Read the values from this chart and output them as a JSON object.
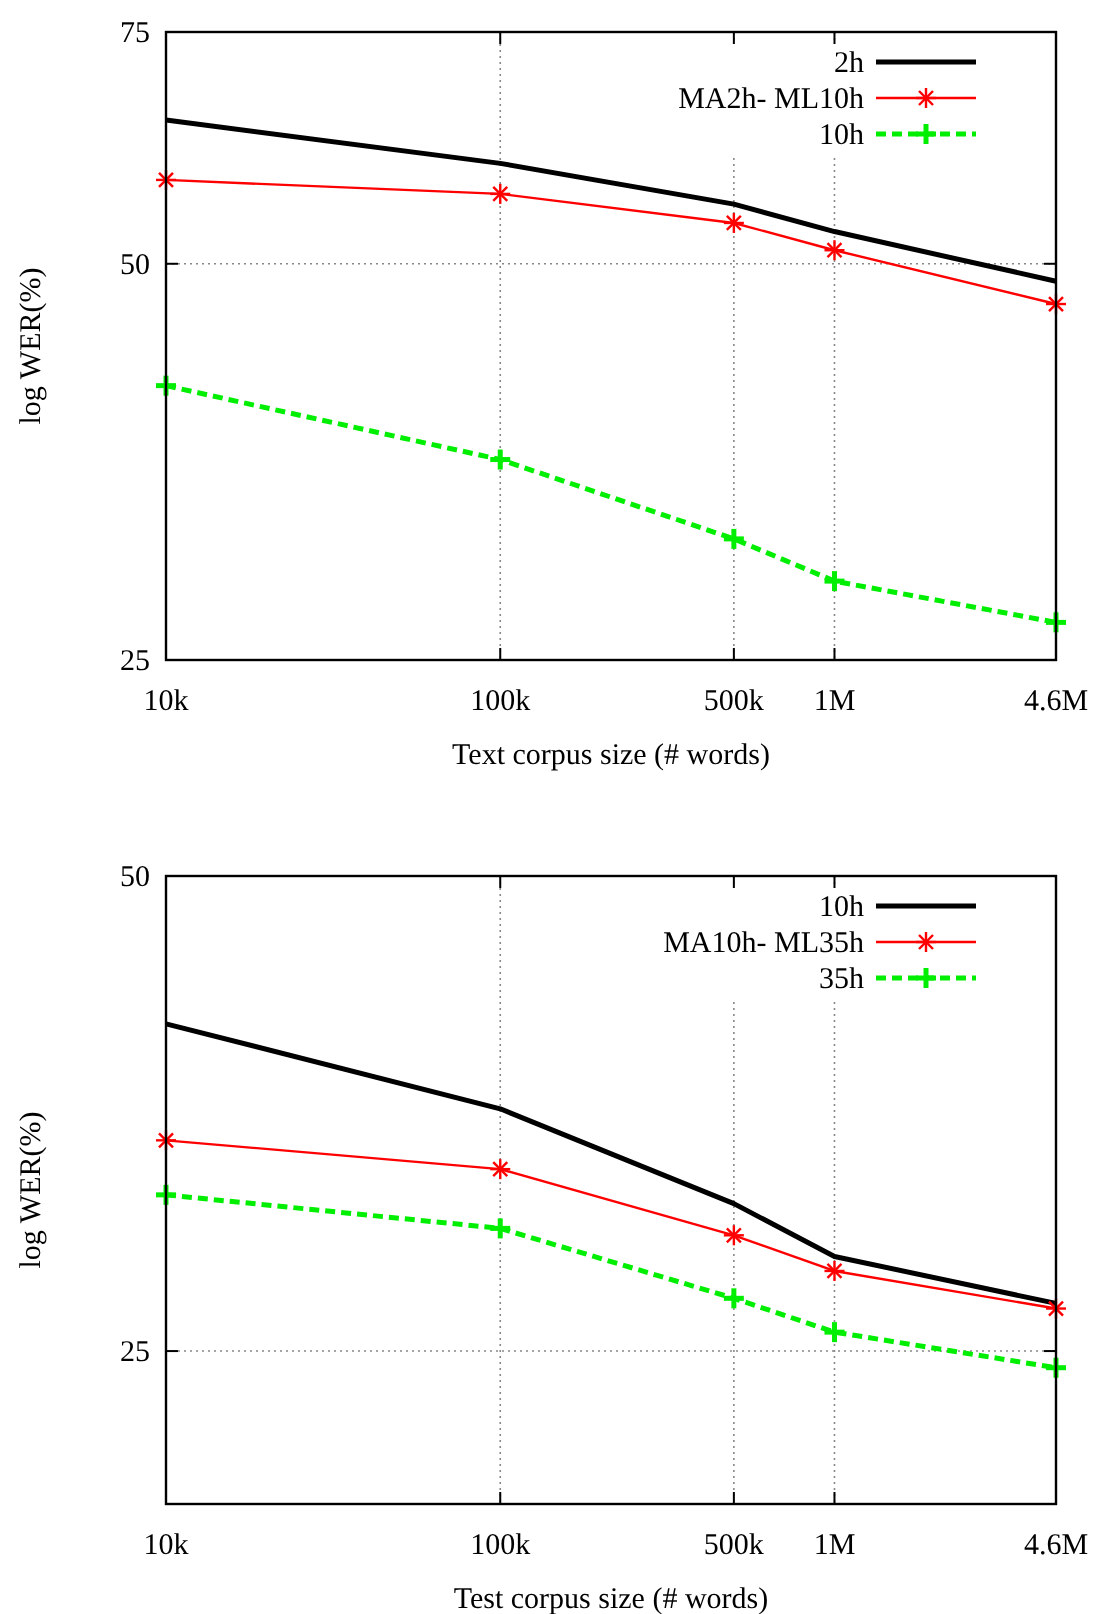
{
  "chart_data": [
    {
      "type": "line",
      "xlabel": "Text corpus size (# words)",
      "ylabel": "log WER(%)",
      "log": "xy",
      "grid": true,
      "legend": "top right",
      "x": [
        10000,
        100000,
        500000,
        1000000,
        4600000
      ],
      "xlim": [
        10000,
        4600000
      ],
      "xticks": [
        {
          "value": 10000,
          "label": "10k"
        },
        {
          "value": 100000,
          "label": "100k"
        },
        {
          "value": 500000,
          "label": "500k"
        },
        {
          "value": 1000000,
          "label": "1M"
        },
        {
          "value": 4600000,
          "label": "4.6M"
        }
      ],
      "ylim": [
        25,
        75
      ],
      "yticks": [
        25,
        50,
        75
      ],
      "series": [
        {
          "name": "2h",
          "color": "#000000",
          "marker": "none",
          "line_style": "solid",
          "values": [
            64.3,
            59.6,
            55.5,
            52.9,
            48.5
          ]
        },
        {
          "name": "MA2h- ML10h",
          "color": "#ff0000",
          "marker": "cross",
          "line_style": "solid",
          "values": [
            57.9,
            56.5,
            53.7,
            51.2,
            46.6
          ]
        },
        {
          "name": "10h",
          "color": "#00ee00",
          "marker": "cross",
          "line_style": "dashed",
          "values": [
            40.4,
            35.5,
            30.9,
            28.7,
            26.7
          ]
        }
      ]
    },
    {
      "type": "line",
      "xlabel": "Test corpus size (# words)",
      "ylabel": "log WER(%)",
      "log": "xy",
      "grid": true,
      "legend": "top right",
      "x": [
        10000,
        100000,
        500000,
        1000000,
        4600000
      ],
      "xlim": [
        10000,
        4600000
      ],
      "xticks": [
        {
          "value": 10000,
          "label": "10k"
        },
        {
          "value": 100000,
          "label": "100k"
        },
        {
          "value": 500000,
          "label": "500k"
        },
        {
          "value": 1000000,
          "label": "1M"
        },
        {
          "value": 4600000,
          "label": "4.6M"
        }
      ],
      "ylim": [
        20,
        50
      ],
      "yticks": [
        {
          "value": 25,
          "label": "25"
        },
        {
          "value": 50,
          "label": "50"
        }
      ],
      "series": [
        {
          "name": "10h",
          "color": "#000000",
          "marker": "none",
          "line_style": "solid",
          "values": [
            40.3,
            35.6,
            31.0,
            28.7,
            26.8
          ]
        },
        {
          "name": "MA10h- ML35h",
          "color": "#ff0000",
          "marker": "cross",
          "line_style": "solid",
          "values": [
            34.0,
            32.6,
            29.6,
            28.1,
            26.6
          ]
        },
        {
          "name": "35h",
          "color": "#00ee00",
          "marker": "cross",
          "line_style": "dashed",
          "values": [
            31.4,
            29.9,
            27.0,
            25.7,
            24.4
          ]
        }
      ]
    }
  ]
}
